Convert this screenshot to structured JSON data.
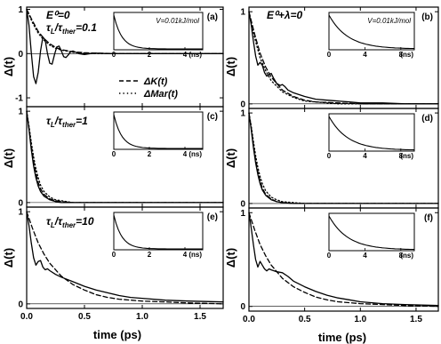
{
  "chart_data": {
    "type": "line",
    "layout": "3x2 grid of panels, each with an inset; shared x-axis per column",
    "xlabel": "time (ps)",
    "ylabel": "Δ(t)",
    "xlim": [
      0,
      1.7
    ],
    "x_ticks": [
      "0.0",
      "0.5",
      "1.0",
      "1.5"
    ],
    "legend": {
      "placement": "inside panel (a), lower-right",
      "entries": [
        {
          "label": "ΔK(t)",
          "style": "dashed"
        },
        {
          "label": "ΔMar(t)",
          "style": "dotted"
        }
      ]
    },
    "columns": [
      {
        "label": "E⁰=0"
      },
      {
        "label": "E⁰+λ=0"
      }
    ],
    "inset": {
      "note": "V=0.01kJ/mol",
      "xlabel": "(ns)",
      "x_ticks_left": [
        "0",
        "2",
        "4"
      ],
      "x_ticks_right": [
        "0",
        "4",
        "8"
      ]
    },
    "panels": [
      {
        "id": "a",
        "tag": "(a)",
        "ratio_label": "τL/τther=0.1",
        "ylim": [
          -1.2,
          1.05
        ],
        "y_ticks": [
          "-1",
          "0",
          "1"
        ],
        "series": [
          {
            "name": "full",
            "x": [
              0,
              0.02,
              0.04,
              0.06,
              0.08,
              0.1,
              0.12,
              0.14,
              0.16,
              0.18,
              0.2,
              0.22,
              0.24,
              0.26,
              0.28,
              0.3,
              0.32,
              0.34,
              0.36,
              0.38,
              0.4,
              0.45,
              0.5,
              0.55,
              0.6,
              0.7,
              0.8,
              1.0,
              1.2,
              1.5,
              1.7
            ],
            "y": [
              1.0,
              0.64,
              0.02,
              -0.52,
              -0.68,
              -0.42,
              0.06,
              0.37,
              0.31,
              0.0,
              -0.22,
              -0.24,
              -0.03,
              0.15,
              0.17,
              0.06,
              -0.07,
              -0.09,
              -0.03,
              0.04,
              0.06,
              0.0,
              -0.02,
              0.0,
              0.01,
              0.0,
              0.0,
              0.0,
              0.0,
              0.0,
              0.0
            ]
          },
          {
            "name": "ΔK(t)",
            "x": [
              0,
              0.05,
              0.1,
              0.15,
              0.2,
              0.25,
              0.3,
              0.4,
              0.5,
              0.6,
              0.8,
              1.0,
              1.3,
              1.7
            ],
            "y": [
              1.0,
              0.74,
              0.5,
              0.34,
              0.22,
              0.14,
              0.09,
              0.04,
              0.02,
              0.01,
              0.0,
              0.0,
              0.0,
              0.0
            ]
          },
          {
            "name": "ΔMar(t)",
            "x": [
              0,
              0.05,
              0.1,
              0.15,
              0.2,
              0.25,
              0.3,
              0.4,
              0.5,
              0.6,
              0.8,
              1.0,
              1.3,
              1.7
            ],
            "y": [
              1.0,
              0.7,
              0.46,
              0.3,
              0.19,
              0.12,
              0.08,
              0.03,
              0.01,
              0.0,
              0.0,
              0.0,
              0.0,
              0.0
            ]
          }
        ]
      },
      {
        "id": "b",
        "tag": "(b)",
        "ratio_label": "",
        "ylim": [
          -0.05,
          1.05
        ],
        "y_ticks": [
          "0",
          "1"
        ],
        "series": [
          {
            "name": "full",
            "x": [
              0,
              0.02,
              0.04,
              0.06,
              0.08,
              0.1,
              0.12,
              0.14,
              0.16,
              0.18,
              0.2,
              0.22,
              0.25,
              0.28,
              0.3,
              0.32,
              0.35,
              0.4,
              0.5,
              0.6,
              0.7,
              0.8,
              0.9,
              1.0,
              1.2,
              1.4,
              1.7
            ],
            "y": [
              1.0,
              0.86,
              0.68,
              0.52,
              0.42,
              0.45,
              0.42,
              0.34,
              0.3,
              0.32,
              0.33,
              0.28,
              0.22,
              0.2,
              0.21,
              0.19,
              0.15,
              0.12,
              0.08,
              0.05,
              0.04,
              0.03,
              0.02,
              0.01,
              0.01,
              0.0,
              0.0
            ]
          },
          {
            "name": "ΔK(t)",
            "x": [
              0,
              0.05,
              0.1,
              0.15,
              0.2,
              0.3,
              0.4,
              0.5,
              0.6,
              0.8,
              1.0,
              1.3,
              1.7
            ],
            "y": [
              1.0,
              0.76,
              0.55,
              0.4,
              0.29,
              0.15,
              0.08,
              0.04,
              0.02,
              0.01,
              0.0,
              0.0,
              0.0
            ]
          },
          {
            "name": "ΔMar(t)",
            "x": [
              0,
              0.05,
              0.1,
              0.15,
              0.2,
              0.3,
              0.4,
              0.5,
              0.6,
              0.8,
              1.0,
              1.3,
              1.7
            ],
            "y": [
              1.0,
              0.72,
              0.5,
              0.36,
              0.25,
              0.13,
              0.07,
              0.03,
              0.02,
              0.0,
              0.0,
              0.0,
              0.0
            ]
          }
        ]
      },
      {
        "id": "c",
        "tag": "(c)",
        "ratio_label": "τL/τther=1",
        "ylim": [
          -0.05,
          1.05
        ],
        "y_ticks": [
          "0",
          "1"
        ],
        "series": [
          {
            "name": "full",
            "x": [
              0,
              0.02,
              0.04,
              0.06,
              0.08,
              0.1,
              0.12,
              0.15,
              0.2,
              0.25,
              0.3,
              0.4,
              0.5,
              0.7,
              1.0,
              1.7
            ],
            "y": [
              1.0,
              0.8,
              0.58,
              0.4,
              0.27,
              0.18,
              0.12,
              0.07,
              0.03,
              0.01,
              0.0,
              0.0,
              0.0,
              0.0,
              0.0,
              0.0
            ]
          },
          {
            "name": "ΔK(t)",
            "x": [
              0,
              0.02,
              0.04,
              0.06,
              0.08,
              0.1,
              0.12,
              0.15,
              0.2,
              0.25,
              0.3,
              0.4,
              0.5,
              0.7,
              1.0,
              1.7
            ],
            "y": [
              1.0,
              0.82,
              0.62,
              0.45,
              0.32,
              0.22,
              0.15,
              0.09,
              0.04,
              0.02,
              0.01,
              0.0,
              0.0,
              0.0,
              0.0,
              0.0
            ]
          },
          {
            "name": "ΔMar(t)",
            "x": [
              0,
              0.02,
              0.04,
              0.06,
              0.08,
              0.1,
              0.12,
              0.15,
              0.2,
              0.25,
              0.3,
              0.4,
              0.5,
              0.7,
              1.0,
              1.7
            ],
            "y": [
              1.0,
              0.84,
              0.66,
              0.5,
              0.37,
              0.27,
              0.19,
              0.12,
              0.06,
              0.03,
              0.02,
              0.0,
              0.0,
              0.0,
              0.0,
              0.0
            ]
          }
        ]
      },
      {
        "id": "d",
        "tag": "(d)",
        "ratio_label": "",
        "ylim": [
          -0.05,
          1.05
        ],
        "y_ticks": [
          "0",
          "1"
        ],
        "series": [
          {
            "name": "full",
            "x": [
              0,
              0.02,
              0.04,
              0.06,
              0.08,
              0.1,
              0.12,
              0.15,
              0.2,
              0.25,
              0.3,
              0.4,
              0.5,
              0.7,
              1.0,
              1.7
            ],
            "y": [
              1.0,
              0.82,
              0.62,
              0.45,
              0.32,
              0.22,
              0.15,
              0.09,
              0.04,
              0.02,
              0.01,
              0.0,
              0.0,
              0.0,
              0.0,
              0.0
            ]
          },
          {
            "name": "ΔK(t)",
            "x": [
              0,
              0.02,
              0.04,
              0.06,
              0.08,
              0.1,
              0.12,
              0.15,
              0.2,
              0.25,
              0.3,
              0.4,
              0.5,
              0.7,
              1.0,
              1.7
            ],
            "y": [
              1.0,
              0.84,
              0.65,
              0.48,
              0.35,
              0.25,
              0.17,
              0.1,
              0.05,
              0.02,
              0.01,
              0.0,
              0.0,
              0.0,
              0.0,
              0.0
            ]
          },
          {
            "name": "ΔMar(t)",
            "x": [
              0,
              0.02,
              0.04,
              0.06,
              0.08,
              0.1,
              0.12,
              0.15,
              0.2,
              0.25,
              0.3,
              0.4,
              0.5,
              0.7,
              1.0,
              1.7
            ],
            "y": [
              1.0,
              0.86,
              0.69,
              0.53,
              0.4,
              0.3,
              0.22,
              0.14,
              0.07,
              0.04,
              0.02,
              0.01,
              0.0,
              0.0,
              0.0,
              0.0
            ]
          }
        ]
      },
      {
        "id": "e",
        "tag": "(e)",
        "ratio_label": "τL/τther=10",
        "ylim": [
          -0.05,
          1.05
        ],
        "y_ticks": [
          "0",
          "1"
        ],
        "series": [
          {
            "name": "full",
            "x": [
              0,
              0.02,
              0.04,
              0.06,
              0.08,
              0.1,
              0.12,
              0.14,
              0.16,
              0.18,
              0.2,
              0.25,
              0.3,
              0.4,
              0.5,
              0.6,
              0.7,
              0.8,
              0.9,
              1.0,
              1.2,
              1.4,
              1.7
            ],
            "y": [
              1.0,
              0.85,
              0.66,
              0.5,
              0.42,
              0.46,
              0.47,
              0.4,
              0.37,
              0.38,
              0.36,
              0.32,
              0.29,
              0.24,
              0.19,
              0.15,
              0.12,
              0.09,
              0.07,
              0.06,
              0.04,
              0.03,
              0.02
            ]
          },
          {
            "name": "ΔK(t)",
            "x": [
              0,
              0.05,
              0.1,
              0.15,
              0.2,
              0.3,
              0.4,
              0.5,
              0.6,
              0.7,
              0.8,
              1.0,
              1.2,
              1.4,
              1.7
            ],
            "y": [
              1.0,
              0.82,
              0.66,
              0.54,
              0.44,
              0.3,
              0.21,
              0.15,
              0.1,
              0.07,
              0.05,
              0.03,
              0.02,
              0.01,
              0.0
            ]
          }
        ]
      },
      {
        "id": "f",
        "tag": "(f)",
        "ratio_label": "",
        "ylim": [
          -0.05,
          1.05
        ],
        "y_ticks": [
          "0",
          "1"
        ],
        "series": [
          {
            "name": "full",
            "x": [
              0,
              0.02,
              0.04,
              0.06,
              0.08,
              0.1,
              0.12,
              0.14,
              0.16,
              0.18,
              0.2,
              0.25,
              0.3,
              0.35,
              0.4,
              0.5,
              0.6,
              0.7,
              0.8,
              0.9,
              1.0,
              1.2,
              1.4,
              1.7
            ],
            "y": [
              1.0,
              0.84,
              0.66,
              0.5,
              0.42,
              0.48,
              0.44,
              0.4,
              0.38,
              0.4,
              0.39,
              0.37,
              0.36,
              0.32,
              0.27,
              0.21,
              0.16,
              0.12,
              0.09,
              0.07,
              0.05,
              0.03,
              0.02,
              0.01
            ]
          },
          {
            "name": "ΔK(t)",
            "x": [
              0,
              0.05,
              0.1,
              0.15,
              0.2,
              0.3,
              0.4,
              0.5,
              0.6,
              0.7,
              0.8,
              1.0,
              1.2,
              1.4,
              1.7
            ],
            "y": [
              1.0,
              0.82,
              0.66,
              0.54,
              0.44,
              0.3,
              0.21,
              0.15,
              0.1,
              0.07,
              0.05,
              0.03,
              0.02,
              0.01,
              0.0
            ]
          }
        ]
      }
    ]
  }
}
